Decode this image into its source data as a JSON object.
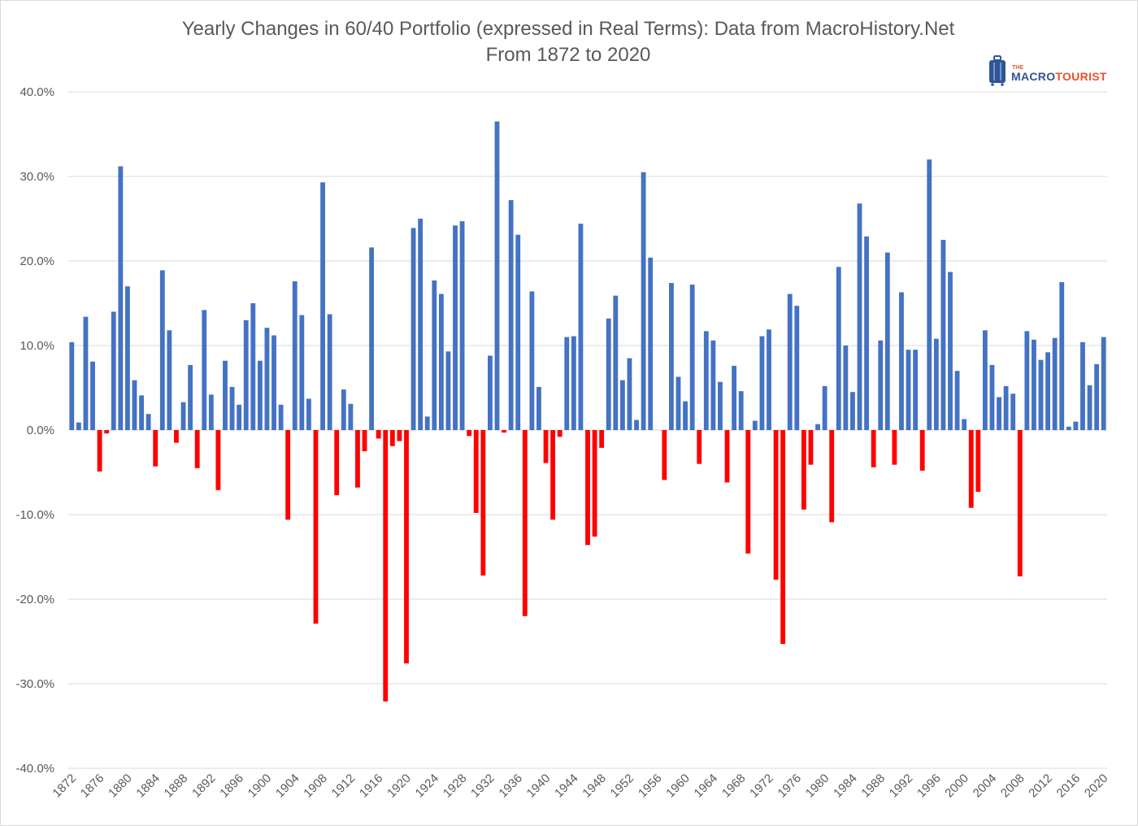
{
  "chart": {
    "title_line1": "Yearly Changes in 60/40 Portfolio (expressed in Real Terms): Data from MacroHistory.Net",
    "title_line2": "From 1872 to 2020"
  },
  "logo": {
    "small": "THE",
    "macro": "MACRO",
    "tourist": "TOURIST"
  },
  "colors": {
    "positive": "#4472c4",
    "negative": "#ff0000",
    "grid": "#d9d9d9",
    "text": "#595959"
  },
  "chart_data": {
    "type": "bar",
    "title": "Yearly Changes in 60/40 Portfolio (expressed in Real Terms): Data from MacroHistory.Net",
    "subtitle": "From 1872 to 2020",
    "xlabel": "",
    "ylabel": "",
    "ylim": [
      -40,
      40
    ],
    "y_ticks": [
      "40.0%",
      "30.0%",
      "20.0%",
      "10.0%",
      "0.0%",
      "-10.0%",
      "-20.0%",
      "-30.0%",
      "-40.0%"
    ],
    "y_tick_values": [
      40,
      30,
      20,
      10,
      0,
      -10,
      -20,
      -30,
      -40
    ],
    "x_tick_labels": [
      "1872",
      "1876",
      "1880",
      "1884",
      "1888",
      "1892",
      "1896",
      "1900",
      "1904",
      "1908",
      "1912",
      "1916",
      "1920",
      "1924",
      "1928",
      "1932",
      "1936",
      "1940",
      "1944",
      "1948",
      "1952",
      "1956",
      "1960",
      "1964",
      "1968",
      "1972",
      "1976",
      "1980",
      "1984",
      "1988",
      "1992",
      "1996",
      "2000",
      "2004",
      "2008",
      "2012",
      "2016",
      "2020"
    ],
    "legend": "none",
    "grid": true,
    "unit": "%",
    "start_year": 1872,
    "values": [
      10.4,
      0.9,
      13.4,
      8.1,
      -4.9,
      -0.4,
      14.0,
      31.2,
      17.0,
      5.9,
      4.1,
      1.9,
      -4.3,
      18.9,
      11.8,
      -1.5,
      3.3,
      7.7,
      -4.5,
      14.2,
      4.2,
      -7.1,
      8.2,
      5.1,
      3.0,
      13.0,
      15.0,
      8.2,
      12.1,
      11.2,
      3.0,
      -10.6,
      17.6,
      13.6,
      3.7,
      -22.9,
      29.3,
      13.7,
      -7.7,
      4.8,
      3.1,
      -6.8,
      -2.5,
      21.6,
      -1.0,
      -32.1,
      -1.9,
      -1.3,
      -27.6,
      23.9,
      25.0,
      1.6,
      17.7,
      16.1,
      9.3,
      24.2,
      24.7,
      -0.7,
      -9.8,
      -17.2,
      8.8,
      36.5,
      -0.3,
      27.2,
      23.1,
      -22.0,
      16.4,
      5.1,
      -3.9,
      -10.6,
      -0.8,
      11.0,
      11.1,
      24.4,
      -13.6,
      -12.6,
      -2.1,
      13.2,
      15.9,
      5.9,
      8.5,
      1.2,
      30.5,
      20.4,
      0.0,
      -5.9,
      17.4,
      6.3,
      3.4,
      17.2,
      -4.0,
      11.7,
      10.6,
      5.7,
      -6.2,
      7.6,
      4.6,
      -14.6,
      1.1,
      11.1,
      11.9,
      -17.7,
      -25.3,
      16.1,
      14.7,
      -9.4,
      -4.1,
      0.7,
      5.2,
      -10.9,
      19.3,
      10.0,
      4.5,
      26.8,
      22.9,
      -4.4,
      10.6,
      21.0,
      -4.1,
      16.3,
      9.5,
      9.5,
      -4.8,
      32.0,
      10.8,
      22.5,
      18.7,
      7.0,
      1.3,
      -9.2,
      -7.3,
      11.8,
      7.7,
      3.9,
      5.2,
      4.3,
      -17.3,
      11.7,
      10.7,
      8.3,
      9.2,
      10.9,
      17.5,
      0.4,
      1.0,
      10.4,
      5.3,
      7.8,
      11.0
    ]
  }
}
